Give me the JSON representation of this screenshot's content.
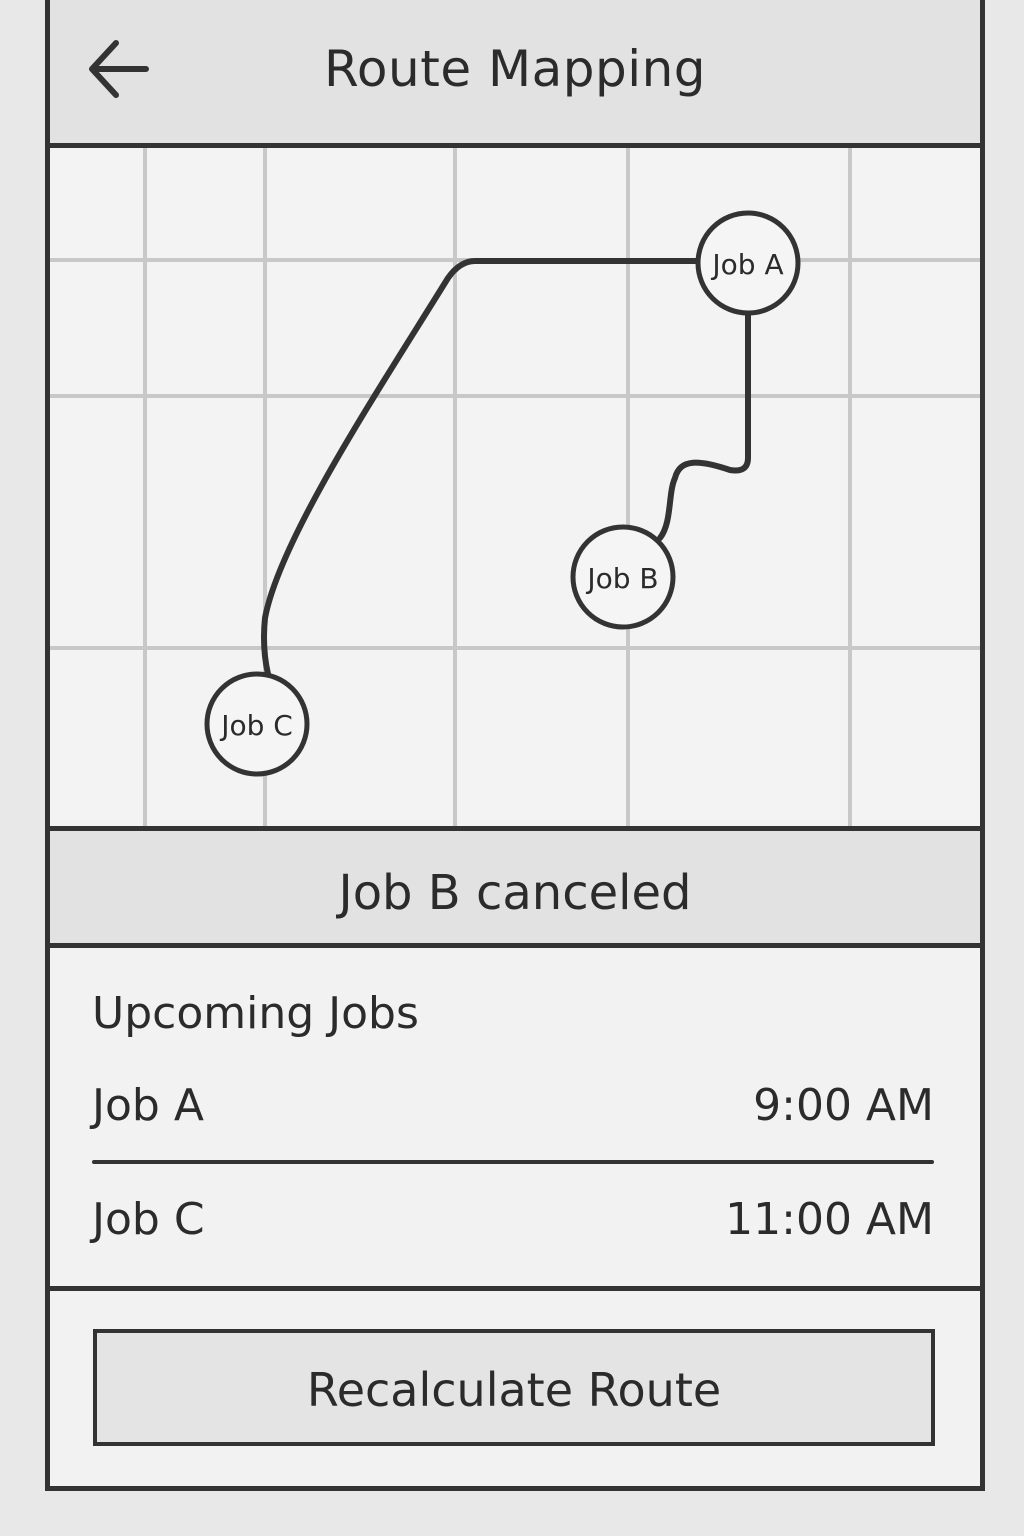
{
  "header": {
    "title": "Route Mapping",
    "back_icon": "arrow-left-icon"
  },
  "map": {
    "nodes": [
      {
        "label": "Job A"
      },
      {
        "label": "Job B"
      },
      {
        "label": "Job C"
      }
    ]
  },
  "banner": {
    "text": "Job B canceled"
  },
  "jobs": {
    "title": "Upcoming Jobs",
    "items": [
      {
        "name": "Job A",
        "time": "9:00 AM"
      },
      {
        "name": "Job C",
        "time": "11:00 AM"
      }
    ]
  },
  "footer": {
    "recalculate_label": "Recalculate Route"
  },
  "colors": {
    "ink": "#333333",
    "panel": "#e2e2e2",
    "background": "#f2f2f2",
    "grid": "#c8c8c8"
  }
}
